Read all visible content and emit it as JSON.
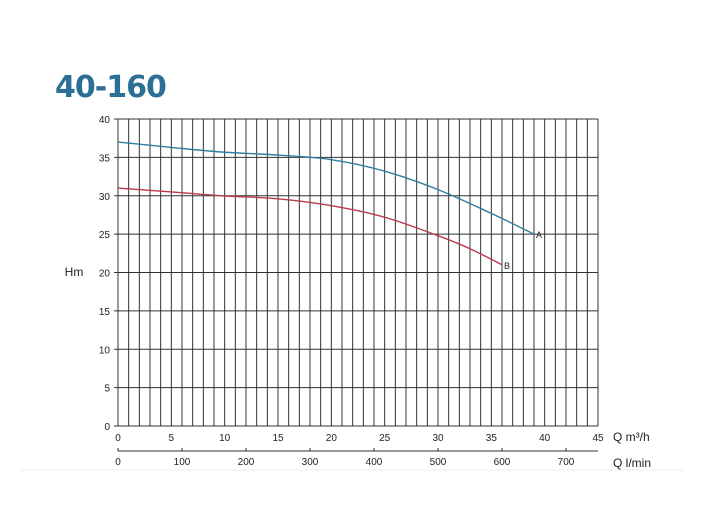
{
  "chart_data": {
    "type": "line",
    "title": "40-160",
    "ylabel": "Hm",
    "xlabel": "Q m³/h",
    "xlabel_secondary": "Q l/min",
    "xlim": [
      0,
      45
    ],
    "ylim": [
      0,
      40
    ],
    "x_ticks": [
      0,
      5,
      10,
      15,
      20,
      25,
      30,
      35,
      40,
      45
    ],
    "y_ticks": [
      0,
      5,
      10,
      15,
      20,
      25,
      30,
      35,
      40
    ],
    "x2_ticks": [
      0,
      100,
      200,
      300,
      400,
      500,
      600,
      700
    ],
    "grid": true,
    "series": [
      {
        "name": "A",
        "color": "#2e7fa1",
        "x": [
          0,
          5,
          9.7,
          15,
          20,
          25,
          30,
          35,
          39
        ],
        "y": [
          37,
          36.3,
          35.7,
          35.3,
          34.7,
          33.2,
          30.8,
          27.7,
          25
        ]
      },
      {
        "name": "B",
        "color": "#b83a4b",
        "x": [
          0,
          5,
          9.7,
          15,
          20,
          25,
          30,
          33,
          36
        ],
        "y": [
          31,
          30.5,
          30,
          29.6,
          28.7,
          27.2,
          24.8,
          23.1,
          21
        ]
      }
    ]
  }
}
